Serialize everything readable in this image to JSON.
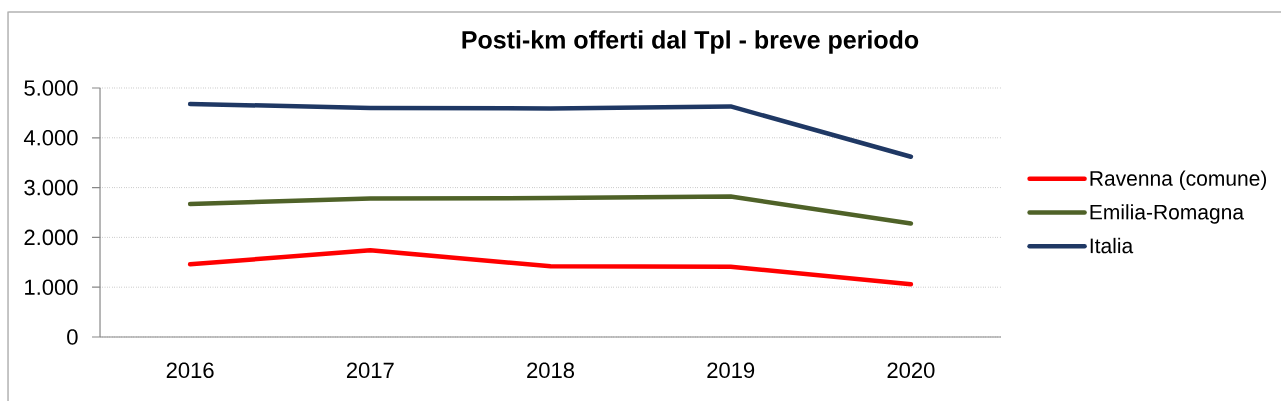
{
  "chart_data": {
    "type": "line",
    "title": "Posti-km  offerti dal Tpl - breve periodo",
    "categories": [
      "2016",
      "2017",
      "2018",
      "2019",
      "2020"
    ],
    "series": [
      {
        "name": "Ravenna (comune)",
        "color": "#ff0000",
        "values": [
          1460,
          1740,
          1420,
          1410,
          1060
        ]
      },
      {
        "name": "Emilia-Romagna",
        "color": "#4f6228",
        "values": [
          2670,
          2780,
          2790,
          2820,
          2280
        ]
      },
      {
        "name": "Italia",
        "color": "#1f3864",
        "values": [
          4680,
          4600,
          4590,
          4630,
          3620
        ]
      }
    ],
    "ylim": [
      0,
      5000
    ],
    "yticks": [
      0,
      {
        "value": 1000,
        "label": "1.000"
      },
      {
        "value": 2000,
        "label": "2.000"
      },
      {
        "value": 3000,
        "label": "3.000"
      },
      {
        "value": 4000,
        "label": "4.000"
      },
      {
        "value": 5000,
        "label": "5.000"
      }
    ],
    "grid": "y",
    "legend": "right",
    "marker": "none",
    "line_style": "solid"
  }
}
